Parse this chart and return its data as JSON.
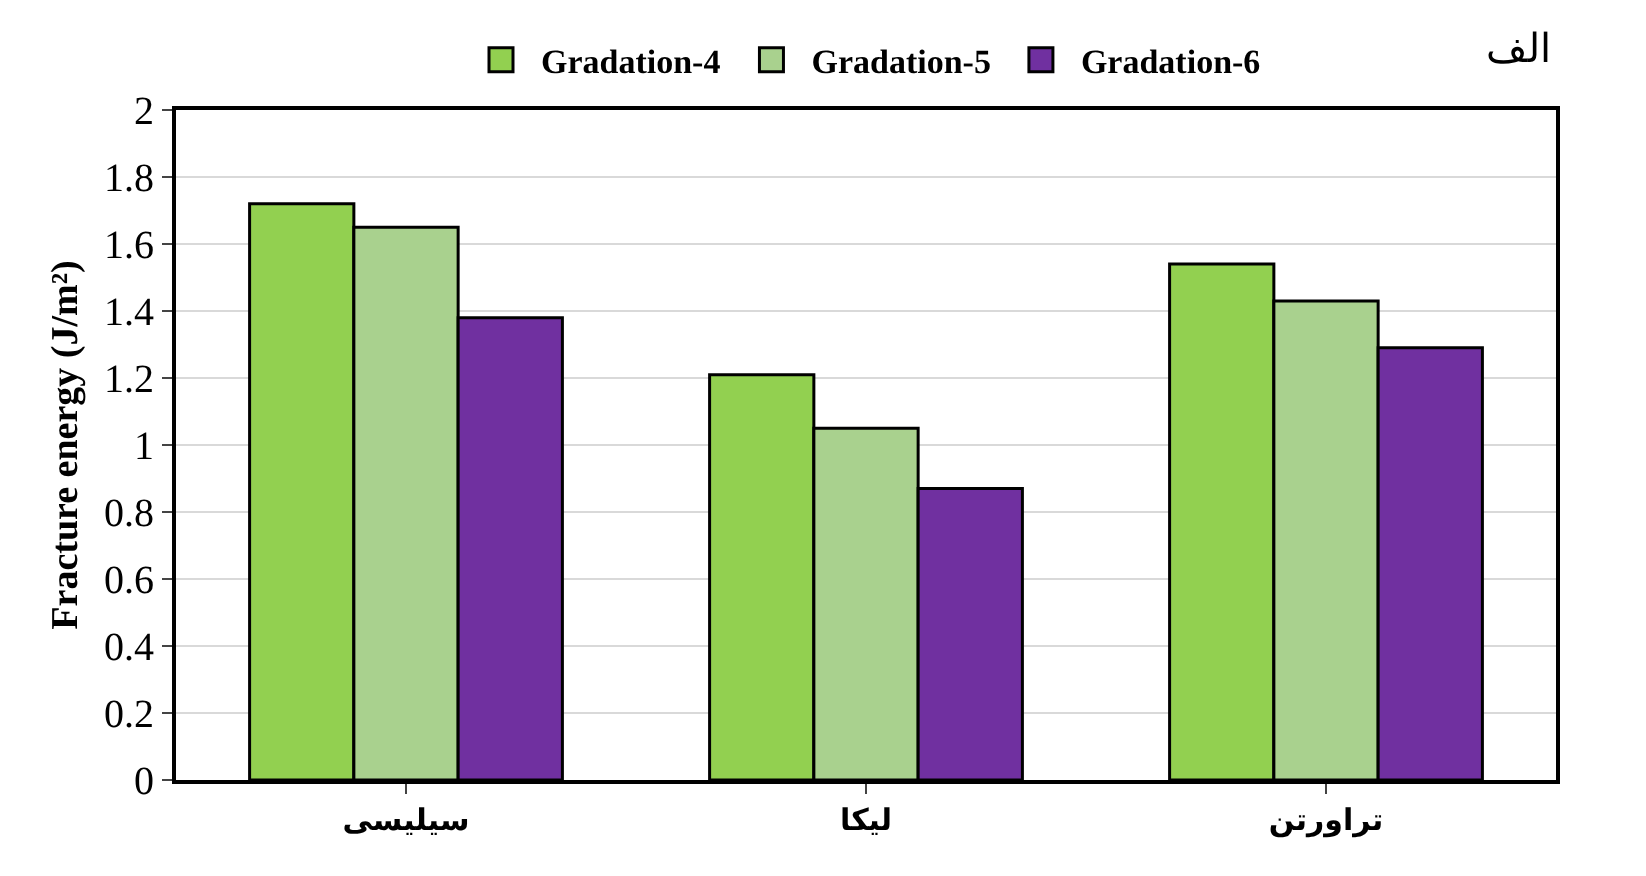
{
  "chart_data": {
    "type": "bar",
    "ylabel": "Fracture energy (J/m²)",
    "categories": [
      "سیلیسی",
      "لیکا",
      "تراورتن"
    ],
    "series": [
      {
        "name": "Gradation-4",
        "color": "#92d050",
        "values": [
          1.72,
          1.21,
          1.54
        ]
      },
      {
        "name": "Gradation-5",
        "color": "#a9d18e",
        "values": [
          1.65,
          1.05,
          1.43
        ]
      },
      {
        "name": "Gradation-6",
        "color": "#7030a0",
        "values": [
          1.38,
          0.87,
          1.29
        ]
      }
    ],
    "ylim": [
      0,
      2
    ],
    "yticks": [
      0,
      0.2,
      0.4,
      0.6,
      0.8,
      1,
      1.2,
      1.4,
      1.6,
      1.8,
      2
    ],
    "grid": "y",
    "legend": "top",
    "annotations": [
      "الف"
    ]
  }
}
